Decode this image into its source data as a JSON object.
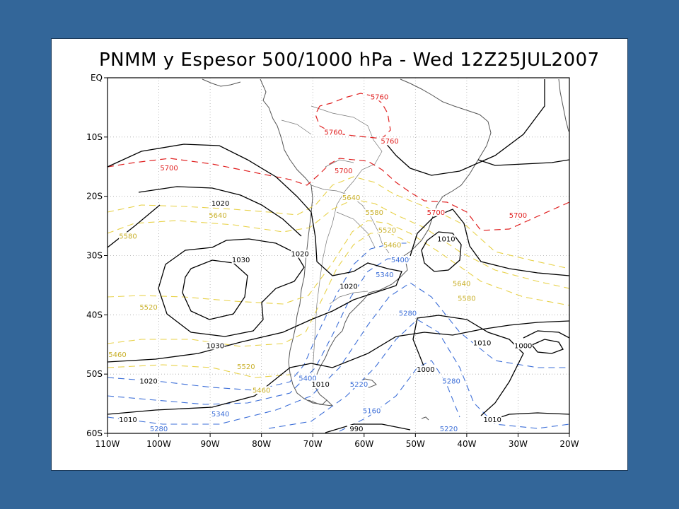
{
  "map": {
    "title": "PNMM y Espesor 500/1000 hPa - Wed 12Z25JUL2007",
    "lat_labels": [
      "EQ",
      "10S",
      "20S",
      "30S",
      "40S",
      "50S",
      "60S"
    ],
    "lat_values": [
      0,
      -10,
      -20,
      -30,
      -40,
      -50,
      -60
    ],
    "lon_labels": [
      "110W",
      "100W",
      "90W",
      "80W",
      "70W",
      "60W",
      "50W",
      "40W",
      "30W",
      "20W"
    ],
    "lon_values": [
      -110,
      -100,
      -90,
      -80,
      -70,
      -60,
      -50,
      -40,
      -30,
      -20
    ],
    "lon_range": [
      -110,
      -20
    ],
    "lat_range": [
      0,
      -60
    ],
    "colors": {
      "pressure": "#000000",
      "thick_warm": "#e02020",
      "thick_mid": "#e8d24a",
      "thick_cold": "#3d6fd8",
      "coast": "#555555",
      "grid": "#aaaaaa"
    },
    "contour_labels": [
      {
        "text": "5760",
        "lon": -57.0,
        "lat": -3.5,
        "kind": "warm"
      },
      {
        "text": "5760",
        "lon": -66.0,
        "lat": -9.5,
        "kind": "warm"
      },
      {
        "text": "5760",
        "lon": -55.0,
        "lat": -11.0,
        "kind": "warm"
      },
      {
        "text": "5700",
        "lon": -98.0,
        "lat": -15.5,
        "kind": "warm"
      },
      {
        "text": "5700",
        "lon": -64.0,
        "lat": -16.0,
        "kind": "warm"
      },
      {
        "text": "5700",
        "lon": -46.0,
        "lat": -23.0,
        "kind": "warm"
      },
      {
        "text": "5700",
        "lon": -30.0,
        "lat": -23.5,
        "kind": "warm"
      },
      {
        "text": "5640",
        "lon": -62.5,
        "lat": -20.5,
        "kind": "mid"
      },
      {
        "text": "5640",
        "lon": -88.5,
        "lat": -23.5,
        "kind": "mid"
      },
      {
        "text": "5640",
        "lon": -41.0,
        "lat": -35.0,
        "kind": "mid"
      },
      {
        "text": "5580",
        "lon": -58.0,
        "lat": -23.0,
        "kind": "mid"
      },
      {
        "text": "5580",
        "lon": -106.0,
        "lat": -27.0,
        "kind": "mid"
      },
      {
        "text": "5580",
        "lon": -40.0,
        "lat": -37.5,
        "kind": "mid"
      },
      {
        "text": "5520",
        "lon": -55.5,
        "lat": -26.0,
        "kind": "mid"
      },
      {
        "text": "5520",
        "lon": -102.0,
        "lat": -39.0,
        "kind": "mid"
      },
      {
        "text": "5520",
        "lon": -83.0,
        "lat": -49.0,
        "kind": "mid"
      },
      {
        "text": "5460",
        "lon": -54.5,
        "lat": -28.5,
        "kind": "mid"
      },
      {
        "text": "5460",
        "lon": -110.5,
        "lat": -47.0,
        "kind": "mid"
      },
      {
        "text": "5460",
        "lon": -80.0,
        "lat": -53.0,
        "kind": "mid"
      },
      {
        "text": "5400",
        "lon": -53.0,
        "lat": -31.0,
        "kind": "cold"
      },
      {
        "text": "5400",
        "lon": -71.0,
        "lat": -51.0,
        "kind": "cold"
      },
      {
        "text": "5340",
        "lon": -56.0,
        "lat": -33.5,
        "kind": "cold"
      },
      {
        "text": "5340",
        "lon": -88.0,
        "lat": -57.0,
        "kind": "cold"
      },
      {
        "text": "5280",
        "lon": -51.5,
        "lat": -40.0,
        "kind": "cold"
      },
      {
        "text": "5280",
        "lon": -43.0,
        "lat": -51.5,
        "kind": "cold"
      },
      {
        "text": "5280",
        "lon": -100.0,
        "lat": -60.0,
        "kind": "cold"
      },
      {
        "text": "5220",
        "lon": -61.0,
        "lat": -52.0,
        "kind": "cold"
      },
      {
        "text": "5220",
        "lon": -43.5,
        "lat": -59.5,
        "kind": "cold"
      },
      {
        "text": "5160",
        "lon": -58.5,
        "lat": -56.5,
        "kind": "cold"
      },
      {
        "text": "1020",
        "lon": -88.0,
        "lat": -21.5,
        "kind": "pressure"
      },
      {
        "text": "1030",
        "lon": -84.0,
        "lat": -31.0,
        "kind": "pressure"
      },
      {
        "text": "1030",
        "lon": -89.0,
        "lat": -45.5,
        "kind": "pressure"
      },
      {
        "text": "1020",
        "lon": -72.5,
        "lat": -30.0,
        "kind": "pressure"
      },
      {
        "text": "1020",
        "lon": -63.0,
        "lat": -35.5,
        "kind": "pressure"
      },
      {
        "text": "1020",
        "lon": -102.0,
        "lat": -51.5,
        "kind": "pressure"
      },
      {
        "text": "1010",
        "lon": -68.5,
        "lat": -52.0,
        "kind": "pressure"
      },
      {
        "text": "1010",
        "lon": -106.0,
        "lat": -58.0,
        "kind": "pressure"
      },
      {
        "text": "1010",
        "lon": -44.0,
        "lat": -27.5,
        "kind": "pressure"
      },
      {
        "text": "1010",
        "lon": -37.0,
        "lat": -45.0,
        "kind": "pressure"
      },
      {
        "text": "1010",
        "lon": -35.0,
        "lat": -58.0,
        "kind": "pressure"
      },
      {
        "text": "1000",
        "lon": -48.0,
        "lat": -49.5,
        "kind": "pressure"
      },
      {
        "text": "1000",
        "lon": -29.0,
        "lat": -45.5,
        "kind": "pressure"
      },
      {
        "text": "990",
        "lon": -61.5,
        "lat": -61.0,
        "kind": "pressure"
      }
    ]
  }
}
